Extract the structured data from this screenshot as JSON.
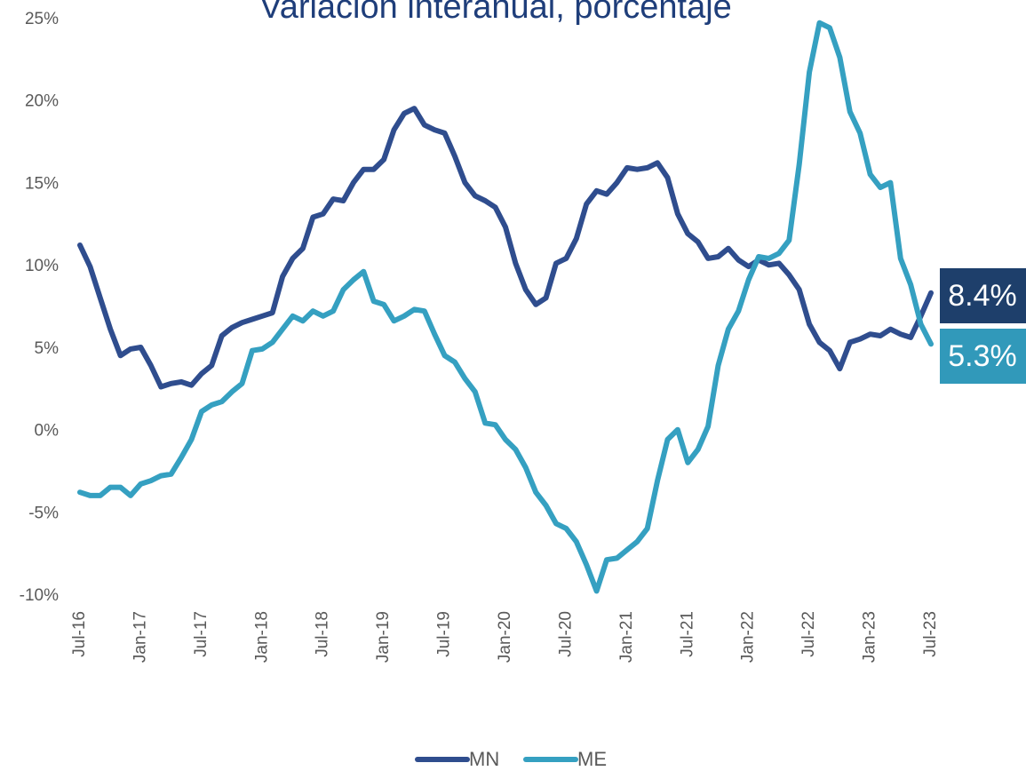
{
  "chart_data": {
    "type": "line",
    "title": "Variación interanual, porcentaje",
    "categories": [
      "Jul-16",
      null,
      null,
      null,
      null,
      null,
      "Jan-17",
      null,
      null,
      null,
      null,
      null,
      "Jul-17",
      null,
      null,
      null,
      null,
      null,
      "Jan-18",
      null,
      null,
      null,
      null,
      null,
      "Jul-18",
      null,
      null,
      null,
      null,
      null,
      "Jan-19",
      null,
      null,
      null,
      null,
      null,
      "Jul-19",
      null,
      null,
      null,
      null,
      null,
      "Jan-20",
      null,
      null,
      null,
      null,
      null,
      "Jul-20",
      null,
      null,
      null,
      null,
      null,
      "Jan-21",
      null,
      null,
      null,
      null,
      null,
      "Jul-21",
      null,
      null,
      null,
      null,
      null,
      "Jan-22",
      null,
      null,
      null,
      null,
      null,
      "Jul-22",
      null,
      null,
      null,
      null,
      null,
      "Jan-23",
      null,
      null,
      null,
      null,
      null,
      "Jul-23"
    ],
    "series": [
      {
        "name": "MN",
        "color": "#2f4d8e",
        "label_color": "#1e3f6b",
        "values": [
          11.3,
          10.0,
          8.1,
          6.2,
          4.6,
          5.0,
          5.1,
          4.0,
          2.7,
          2.9,
          3.0,
          2.8,
          3.5,
          4.0,
          5.8,
          6.3,
          6.6,
          6.8,
          7.0,
          7.2,
          9.4,
          10.5,
          11.1,
          13.0,
          13.2,
          14.1,
          14.0,
          15.1,
          15.9,
          15.9,
          16.5,
          18.3,
          19.3,
          19.6,
          18.6,
          18.3,
          18.1,
          16.7,
          15.1,
          14.3,
          14.0,
          13.6,
          12.4,
          10.2,
          8.6,
          7.7,
          8.1,
          10.2,
          10.5,
          11.7,
          13.8,
          14.6,
          14.4,
          15.1,
          16.0,
          15.9,
          16.0,
          16.3,
          15.4,
          13.2,
          12.0,
          11.5,
          10.5,
          10.6,
          11.1,
          10.4,
          10.0,
          10.4,
          10.1,
          10.2,
          9.5,
          8.6,
          6.5,
          5.4,
          4.9,
          3.8,
          5.4,
          5.6,
          5.9,
          5.8,
          6.2,
          5.9,
          5.7,
          7.0,
          8.4
        ],
        "value_labels": {
          "84": "8.4%"
        }
      },
      {
        "name": "ME",
        "color": "#35a0c1",
        "label_color": "#3199ba",
        "values": [
          -3.7,
          -3.9,
          -3.9,
          -3.4,
          -3.4,
          -3.9,
          -3.2,
          -3.0,
          -2.7,
          -2.6,
          -1.6,
          -0.5,
          1.2,
          1.6,
          1.8,
          2.4,
          2.9,
          4.9,
          5.0,
          5.4,
          6.2,
          7.0,
          6.7,
          7.3,
          7.0,
          7.3,
          8.6,
          9.2,
          9.7,
          7.9,
          7.7,
          6.7,
          7.0,
          7.4,
          7.3,
          5.9,
          4.6,
          4.2,
          3.2,
          2.4,
          0.5,
          0.4,
          -0.5,
          -1.1,
          -2.2,
          -3.7,
          -4.5,
          -5.6,
          -5.9,
          -6.7,
          -8.1,
          -9.7,
          -7.8,
          -7.7,
          -7.2,
          -6.7,
          -5.9,
          -3.0,
          -0.5,
          0.1,
          -1.9,
          -1.1,
          0.3,
          4.0,
          6.2,
          7.3,
          9.2,
          10.6,
          10.5,
          10.8,
          11.6,
          16.2,
          21.8,
          24.8,
          24.5,
          22.7,
          19.4,
          18.1,
          15.6,
          14.8,
          15.1,
          10.5,
          8.9,
          6.5,
          5.3
        ],
        "value_labels": {
          "84": "5.3%"
        }
      }
    ],
    "ylim": [
      -10,
      25
    ],
    "yticks": [
      {
        "value": -10,
        "label": "-10%"
      },
      {
        "value": -5,
        "label": "-5%"
      },
      {
        "value": 0,
        "label": "0%"
      },
      {
        "value": 5,
        "label": "5%"
      },
      {
        "value": 10,
        "label": "10%"
      },
      {
        "value": 15,
        "label": "15%"
      },
      {
        "value": 20,
        "label": "20%"
      },
      {
        "value": 25,
        "label": "25%"
      }
    ],
    "grid": false,
    "legend": "bottom"
  }
}
